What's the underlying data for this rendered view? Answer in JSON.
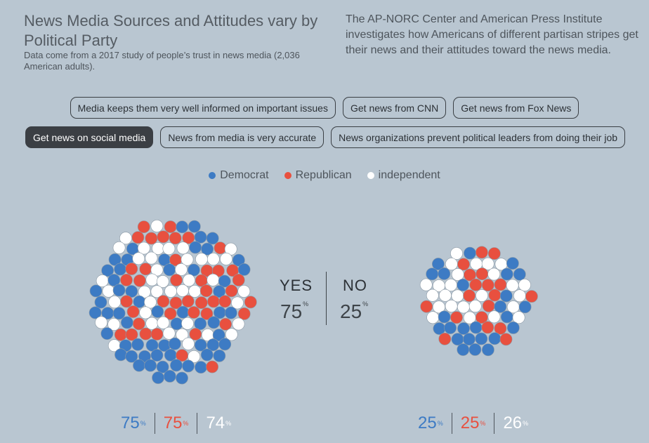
{
  "header": {
    "title": "News Media Sources and Attitudes vary by Political Party",
    "subtitle": "Data come from a 2017 study of people’s trust in news media (2,036 American adults).",
    "intro": "The AP-NORC Center and American Press Institute investigates how Americans of different partisan stripes get their news and their attitudes toward the news media."
  },
  "filters": {
    "row1": [
      {
        "label": "Media keeps them very well informed on important issues",
        "active": false
      },
      {
        "label": "Get news from CNN",
        "active": false
      },
      {
        "label": "Get news from Fox News",
        "active": false
      }
    ],
    "row2": [
      {
        "label": "Get news on social media",
        "active": true
      },
      {
        "label": "News from media is very accurate",
        "active": false
      },
      {
        "label": "News organizations prevent political leaders from doing their job",
        "active": false
      }
    ]
  },
  "legend": [
    {
      "label": "Democrat",
      "color": "#3d7bc4"
    },
    {
      "label": "Republican",
      "color": "#e8503f"
    },
    {
      "label": "independent",
      "color": "#ffffff"
    }
  ],
  "answers": {
    "yes": {
      "label": "YES",
      "value": "75",
      "unit": "%"
    },
    "no": {
      "label": "NO",
      "value": "25",
      "unit": "%"
    }
  },
  "stats": {
    "yes": [
      {
        "party": "Democrat",
        "value": "75",
        "unit": "%",
        "color": "#3d7bc4"
      },
      {
        "party": "Republican",
        "value": "75",
        "unit": "%",
        "color": "#e8503f"
      },
      {
        "party": "independent",
        "value": "74",
        "unit": "%",
        "color": "#ffffff"
      }
    ],
    "no": [
      {
        "party": "Democrat",
        "value": "25",
        "unit": "%",
        "color": "#3d7bc4"
      },
      {
        "party": "Republican",
        "value": "25",
        "unit": "%",
        "color": "#e8503f"
      },
      {
        "party": "independent",
        "value": "26",
        "unit": "%",
        "color": "#ffffff"
      }
    ]
  }
}
